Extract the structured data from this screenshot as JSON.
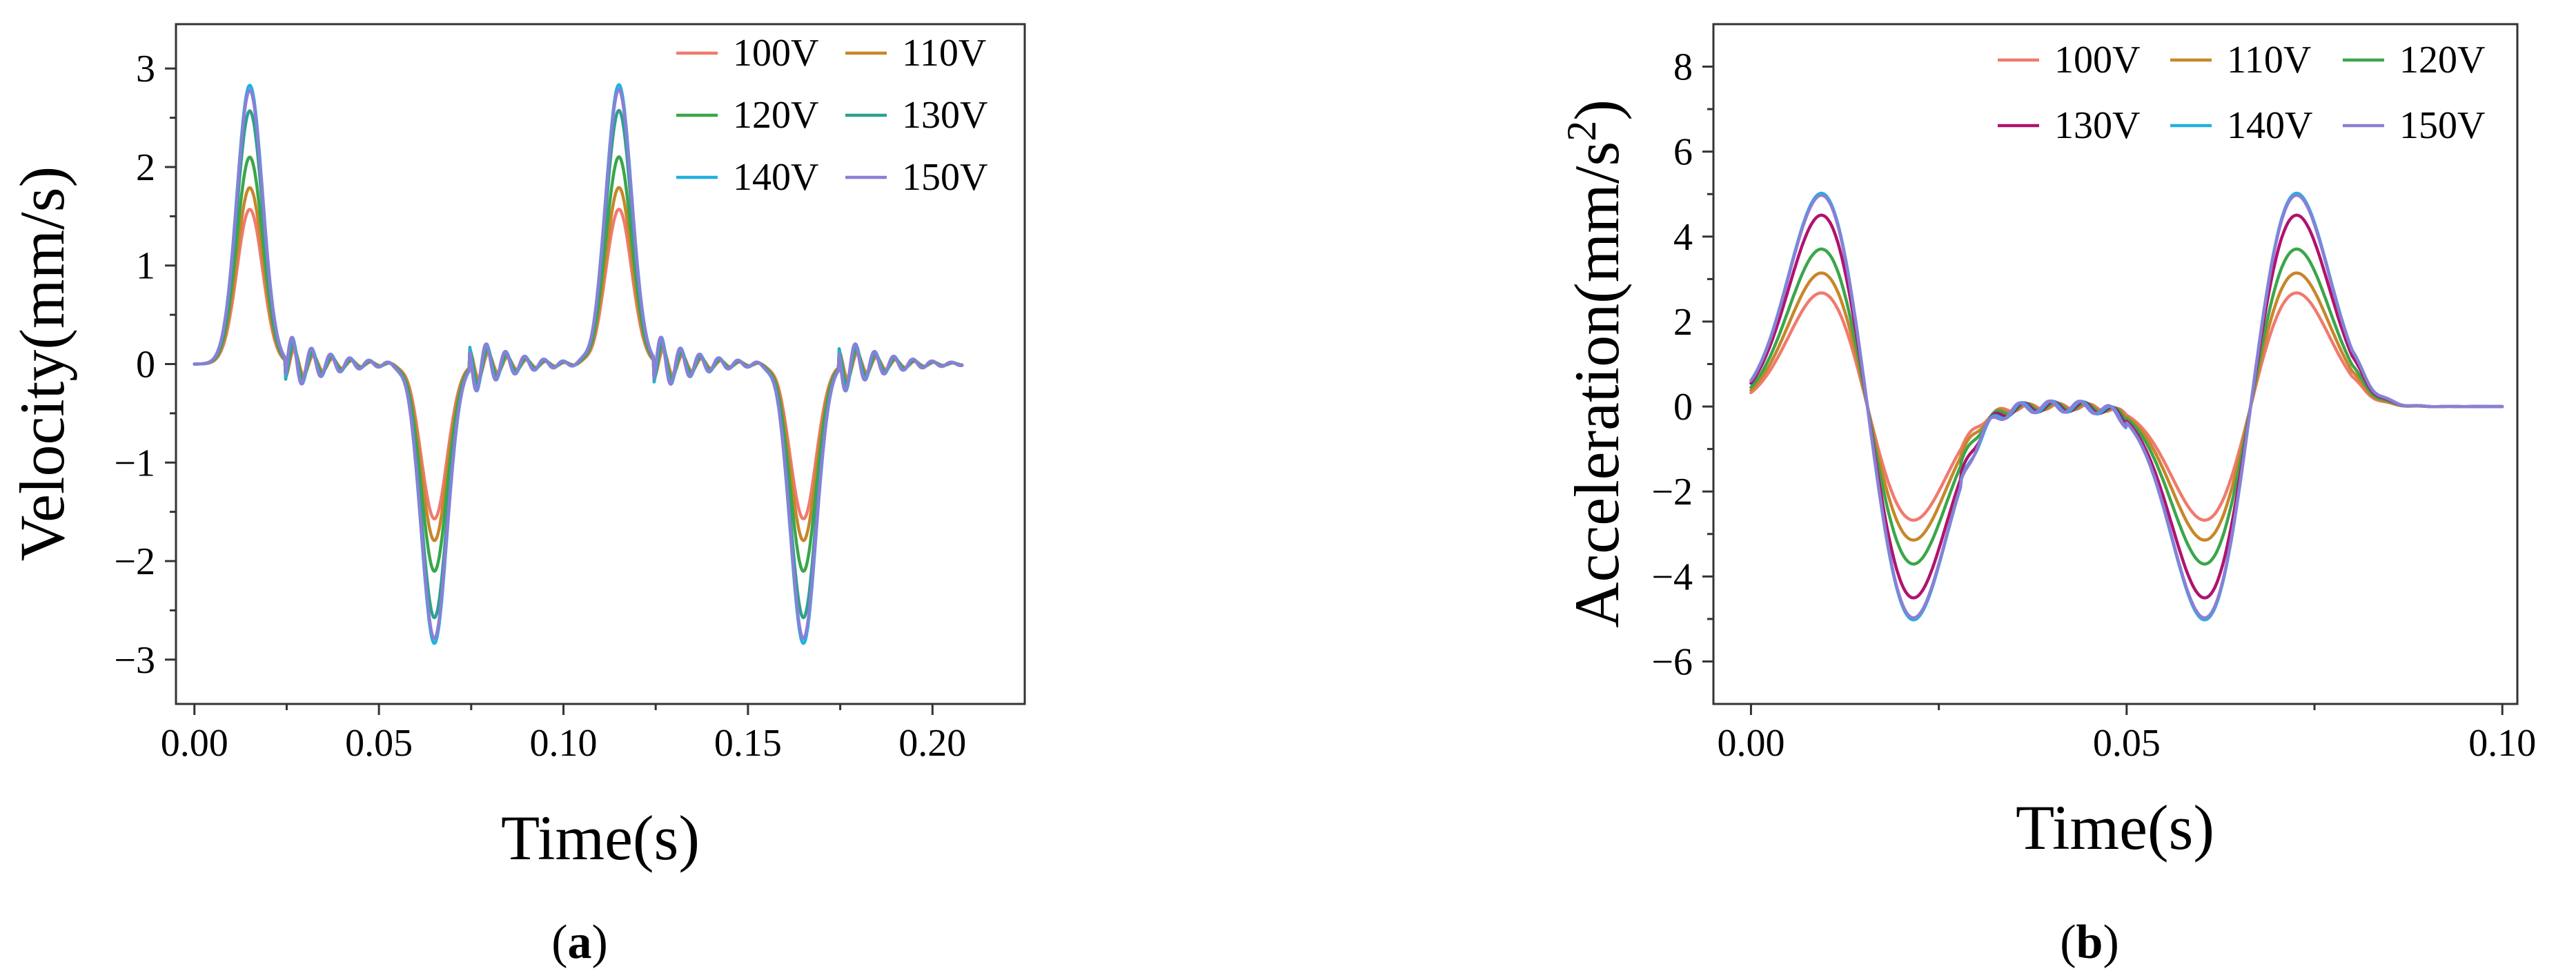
{
  "chart_data": [
    {
      "type": "line",
      "panel_label": "a",
      "title": "",
      "xlabel": "Time(s)",
      "ylabel": "Velocity(mm/s)",
      "xlim": [
        -0.005,
        0.225
      ],
      "ylim": [
        -3.45,
        3.45
      ],
      "xticks": [
        0.0,
        0.05,
        0.1,
        0.15,
        0.2
      ],
      "xtick_labels": [
        "0.00",
        "0.05",
        "0.10",
        "0.15",
        "0.20"
      ],
      "yticks": [
        -3,
        -2,
        -1,
        0,
        1,
        2,
        3
      ],
      "ytick_labels": [
        "−3",
        "−2",
        "−1",
        "0",
        "1",
        "2",
        "3"
      ],
      "legend_position": "top-right",
      "legend_columns": 2,
      "series": [
        {
          "name": "100V",
          "color": "#f07a6e",
          "peak": 1.57
        },
        {
          "name": "110V",
          "color": "#c8862a",
          "peak": 1.79
        },
        {
          "name": "120V",
          "color": "#3aa64a",
          "peak": 2.1
        },
        {
          "name": "130V",
          "color": "#2f9f8f",
          "peak": 2.57
        },
        {
          "name": "140V",
          "color": "#22b1e0",
          "peak": 2.83
        },
        {
          "name": "150V",
          "color": "#8a7fd6",
          "peak": 2.78
        }
      ],
      "peaks_at": [
        {
          "t": 0.015,
          "sign": 1
        },
        {
          "t": 0.065,
          "sign": -1
        },
        {
          "t": 0.115,
          "sign": 1
        },
        {
          "t": 0.165,
          "sign": -1
        }
      ],
      "x_range": [
        0.0,
        0.208
      ]
    },
    {
      "type": "line",
      "panel_label": "b",
      "title": "",
      "xlabel": "Time(s)",
      "ylabel": "Acceleration(mm/s",
      "ylabel_superscript": "2",
      "ylabel_suffix": ")",
      "xlim": [
        -0.005,
        0.102
      ],
      "ylim": [
        -7,
        9
      ],
      "xticks": [
        0.0,
        0.05,
        0.1
      ],
      "xtick_labels": [
        "0.00",
        "0.05",
        "0.10"
      ],
      "yticks": [
        -6,
        -4,
        -2,
        0,
        2,
        4,
        6,
        8
      ],
      "ytick_labels": [
        "−6",
        "−4",
        "−2",
        "0",
        "2",
        "4",
        "6",
        "8"
      ],
      "legend_position": "top-right",
      "legend_columns": 3,
      "series": [
        {
          "name": "100V",
          "color": "#f07a6e",
          "peak": 2.85
        },
        {
          "name": "110V",
          "color": "#c8862a",
          "peak": 3.35
        },
        {
          "name": "120V",
          "color": "#3aa64a",
          "peak": 3.95
        },
        {
          "name": "130V",
          "color": "#b0136e",
          "peak": 4.8
        },
        {
          "name": "140V",
          "color": "#22b1e0",
          "peak": 5.35
        },
        {
          "name": "150V",
          "color": "#8a7fd6",
          "peak": 5.3
        }
      ],
      "peaks_at": [
        {
          "t": 0.01,
          "sign": 1
        },
        {
          "t": 0.021,
          "sign": -1
        },
        {
          "t": 0.061,
          "sign": -1
        },
        {
          "t": 0.072,
          "sign": 1
        }
      ],
      "x_range": [
        0.0,
        0.1
      ]
    }
  ]
}
